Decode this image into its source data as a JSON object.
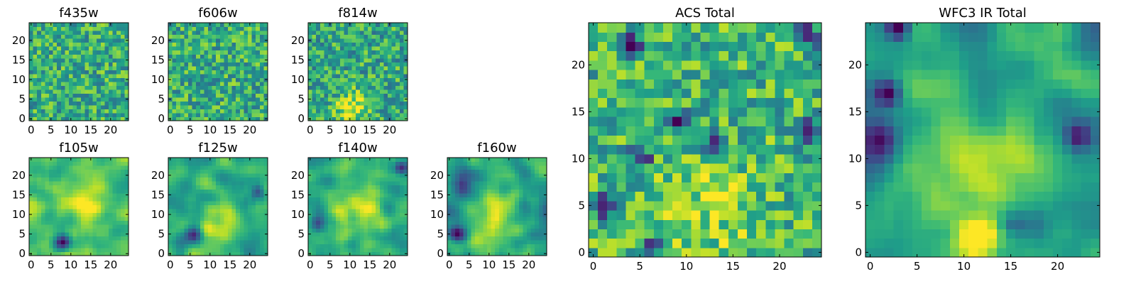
{
  "chart_data": [
    {
      "type": "heatmap",
      "title": "f435w",
      "x_ticks": [
        0,
        5,
        10,
        15,
        20
      ],
      "y_ticks": [
        0,
        5,
        10,
        15,
        20
      ],
      "xlim": [
        -0.5,
        24.5
      ],
      "ylim": [
        -0.5,
        24.5
      ],
      "grid_size": 25,
      "colormap": "viridis",
      "texture": "noisy",
      "mean_level": 0.62,
      "features": []
    },
    {
      "type": "heatmap",
      "title": "f606w",
      "x_ticks": [
        0,
        5,
        10,
        15,
        20
      ],
      "y_ticks": [
        0,
        5,
        10,
        15,
        20
      ],
      "xlim": [
        -0.5,
        24.5
      ],
      "ylim": [
        -0.5,
        24.5
      ],
      "grid_size": 25,
      "colormap": "viridis",
      "texture": "noisy",
      "mean_level": 0.62,
      "features": []
    },
    {
      "type": "heatmap",
      "title": "f814w",
      "x_ticks": [
        0,
        5,
        10,
        15,
        20
      ],
      "y_ticks": [
        0,
        5,
        10,
        15,
        20
      ],
      "xlim": [
        -0.5,
        24.5
      ],
      "ylim": [
        -0.5,
        24.5
      ],
      "grid_size": 25,
      "colormap": "viridis",
      "texture": "noisy",
      "mean_level": 0.6,
      "features": [
        {
          "x": 11,
          "y": 3,
          "amp": 0.35,
          "r": 3
        }
      ]
    },
    {
      "type": "heatmap",
      "title": "f105w",
      "x_ticks": [
        0,
        5,
        10,
        15,
        20
      ],
      "y_ticks": [
        0,
        5,
        10,
        15,
        20
      ],
      "xlim": [
        -0.5,
        24.5
      ],
      "ylim": [
        -0.5,
        24.5
      ],
      "grid_size": 25,
      "colormap": "viridis",
      "texture": "smooth",
      "mean_level": 0.72,
      "features": [
        {
          "x": 13,
          "y": 15,
          "amp": 0.25,
          "r": 4
        },
        {
          "x": 8,
          "y": 3,
          "amp": -0.7,
          "r": 1.5
        }
      ]
    },
    {
      "type": "heatmap",
      "title": "f125w",
      "x_ticks": [
        0,
        5,
        10,
        15,
        20
      ],
      "y_ticks": [
        0,
        5,
        10,
        15,
        20
      ],
      "xlim": [
        -0.5,
        24.5
      ],
      "ylim": [
        -0.5,
        24.5
      ],
      "grid_size": 25,
      "colormap": "viridis",
      "texture": "smooth",
      "mean_level": 0.62,
      "features": [
        {
          "x": 12,
          "y": 8,
          "amp": 0.3,
          "r": 4
        },
        {
          "x": 6,
          "y": 5,
          "amp": -0.6,
          "r": 1.5
        },
        {
          "x": 22,
          "y": 16,
          "amp": -0.5,
          "r": 1.2
        }
      ]
    },
    {
      "type": "heatmap",
      "title": "f140w",
      "x_ticks": [
        0,
        5,
        10,
        15,
        20
      ],
      "y_ticks": [
        0,
        5,
        10,
        15,
        20
      ],
      "xlim": [
        -0.5,
        24.5
      ],
      "ylim": [
        -0.5,
        24.5
      ],
      "grid_size": 25,
      "colormap": "viridis",
      "texture": "smooth",
      "mean_level": 0.6,
      "features": [
        {
          "x": 12,
          "y": 10,
          "amp": 0.3,
          "r": 5
        },
        {
          "x": 2,
          "y": 8,
          "amp": -0.5,
          "r": 1.5
        },
        {
          "x": 23,
          "y": 22,
          "amp": -0.5,
          "r": 1.2
        }
      ]
    },
    {
      "type": "heatmap",
      "title": "f160w",
      "x_ticks": [
        0,
        5,
        10,
        15,
        20
      ],
      "y_ticks": [
        0,
        5,
        10,
        15,
        20
      ],
      "xlim": [
        -0.5,
        24.5
      ],
      "ylim": [
        -0.5,
        24.5
      ],
      "grid_size": 25,
      "colormap": "viridis",
      "texture": "smooth",
      "mean_level": 0.55,
      "features": [
        {
          "x": 12,
          "y": 8,
          "amp": 0.35,
          "r": 5
        },
        {
          "x": 2,
          "y": 5,
          "amp": -0.55,
          "r": 1.5
        },
        {
          "x": 3,
          "y": 18,
          "amp": -0.35,
          "r": 2
        }
      ]
    },
    {
      "type": "heatmap",
      "title": "ACS Total",
      "x_ticks": [
        0,
        5,
        10,
        15,
        20
      ],
      "y_ticks": [
        0,
        5,
        10,
        15,
        20
      ],
      "xlim": [
        -0.5,
        24.5
      ],
      "ylim": [
        -0.5,
        24.5
      ],
      "grid_size": 25,
      "colormap": "viridis",
      "texture": "noisy",
      "mean_level": 0.66,
      "features": [
        {
          "x": 12,
          "y": 5,
          "amp": 0.2,
          "r": 4
        },
        {
          "x": 4,
          "y": 22,
          "amp": -0.7,
          "r": 0.8
        },
        {
          "x": 5,
          "y": 10,
          "amp": -0.7,
          "r": 0.8
        },
        {
          "x": 9,
          "y": 14,
          "amp": -0.7,
          "r": 0.8
        },
        {
          "x": 13,
          "y": 12,
          "amp": -0.7,
          "r": 0.8
        },
        {
          "x": 23,
          "y": 13,
          "amp": -0.7,
          "r": 0.8
        },
        {
          "x": 23,
          "y": 23,
          "amp": -0.65,
          "r": 0.8
        },
        {
          "x": 1,
          "y": 5,
          "amp": -0.6,
          "r": 0.8
        },
        {
          "x": 7,
          "y": 1,
          "amp": -0.7,
          "r": 0.8
        }
      ]
    },
    {
      "type": "heatmap",
      "title": "WFC3 IR Total",
      "x_ticks": [
        0,
        5,
        10,
        15,
        20
      ],
      "y_ticks": [
        0,
        5,
        10,
        15,
        20
      ],
      "xlim": [
        -0.5,
        24.5
      ],
      "ylim": [
        -0.5,
        24.5
      ],
      "grid_size": 25,
      "colormap": "viridis",
      "texture": "smooth",
      "mean_level": 0.55,
      "features": [
        {
          "x": 12,
          "y": 10,
          "amp": 0.35,
          "r": 5
        },
        {
          "x": 12,
          "y": 2,
          "amp": 0.3,
          "r": 2
        },
        {
          "x": 1,
          "y": 12,
          "amp": -0.55,
          "r": 1.6
        },
        {
          "x": 22,
          "y": 12.5,
          "amp": -0.6,
          "r": 1.2
        },
        {
          "x": 2,
          "y": 17,
          "amp": -0.6,
          "r": 1
        },
        {
          "x": 3,
          "y": 24,
          "amp": -0.6,
          "r": 0.8
        },
        {
          "x": 15,
          "y": 3,
          "amp": -0.3,
          "r": 1
        }
      ]
    }
  ]
}
